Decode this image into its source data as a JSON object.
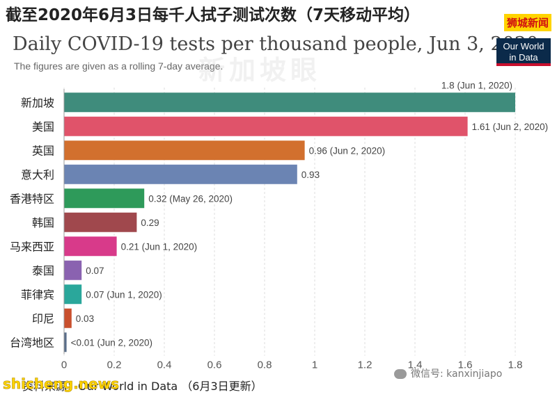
{
  "header": {
    "title": "截至2020年6月3日每千人拭子测试次数（7天移动平均）",
    "brand": "狮城新闻"
  },
  "chart_data": {
    "type": "bar",
    "orientation": "horizontal",
    "title": "Daily COVID-19 tests per thousand people, Jun 3, 2020",
    "subtitle": "The figures are given as a rolling 7-day average.",
    "categories": [
      "新加坡",
      "美国",
      "英国",
      "意大利",
      "香港特区",
      "韩国",
      "马来西亚",
      "泰国",
      "菲律宾",
      "印尼",
      "台湾地区"
    ],
    "values": [
      1.8,
      1.61,
      0.96,
      0.93,
      0.32,
      0.29,
      0.21,
      0.07,
      0.07,
      0.03,
      0.01
    ],
    "data_labels": [
      "1.8 (Jun 1, 2020)",
      "1.61 (Jun 2, 2020)",
      "0.96 (Jun 2, 2020)",
      "0.93",
      "0.32 (May 26, 2020)",
      "0.29",
      "0.21 (Jun 1, 2020)",
      "0.07",
      "0.07 (Jun 1, 2020)",
      "0.03",
      "<0.01 (Jun 2, 2020)"
    ],
    "colors": [
      "#3f8c7c",
      "#e0536a",
      "#d2702e",
      "#6b84b3",
      "#2e9a5a",
      "#a0484d",
      "#d83a8a",
      "#8a62b0",
      "#2aa79b",
      "#c9502e",
      "#5a6e8a"
    ],
    "x_ticks": [
      "0",
      "0.2",
      "0.4",
      "0.6",
      "0.8",
      "1",
      "1.2",
      "1.4",
      "1.6",
      "1.8"
    ],
    "xlim": [
      0,
      1.8
    ],
    "grid": true
  },
  "logo": {
    "line1": "Our World",
    "line2": "in Data"
  },
  "footer": {
    "source": "资料来源：Our World in Data （6月3日更新）",
    "watermark_left": "shicheng.news",
    "watermark_right": "微信号: kanxinjiapo",
    "watermark_center": "新加坡眼"
  }
}
